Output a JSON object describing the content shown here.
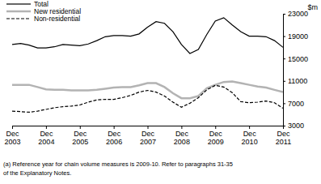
{
  "chart_data": {
    "type": "line",
    "y_label": "$m",
    "categories": [
      "Dec 2003",
      null,
      null,
      null,
      "Dec 2004",
      null,
      null,
      null,
      "Dec 2005",
      null,
      null,
      null,
      "Dec 2006",
      null,
      null,
      null,
      "Dec 2007",
      null,
      null,
      null,
      "Dec 2008",
      null,
      null,
      null,
      "Dec 2009",
      null,
      null,
      null,
      "Dec 2010",
      null,
      null,
      null,
      "Dec 2011"
    ],
    "series": [
      {
        "name": "Total",
        "color": "#000000",
        "line_style": "solid",
        "values": [
          17500,
          17700,
          17400,
          16900,
          16900,
          17100,
          17500,
          17400,
          17300,
          17600,
          18200,
          18900,
          19100,
          19100,
          19000,
          19400,
          20600,
          21600,
          21300,
          19800,
          17500,
          15900,
          16600,
          19300,
          21700,
          22300,
          21000,
          19800,
          19000,
          19000,
          18900,
          18200,
          17000
        ]
      },
      {
        "name": "New residential",
        "color": "#b3b3b3",
        "line_style": "solid",
        "values": [
          10300,
          10300,
          10300,
          9900,
          9500,
          9400,
          9400,
          9300,
          9300,
          9300,
          9400,
          9600,
          9800,
          9900,
          9900,
          10200,
          10600,
          10600,
          9900,
          8800,
          7900,
          7900,
          8300,
          9700,
          10300,
          10800,
          10900,
          10600,
          10300,
          10000,
          9800,
          9400,
          9000
        ]
      },
      {
        "name": "Non-residential",
        "color": "#000000",
        "line_style": "dashed",
        "values": [
          5600,
          5500,
          5400,
          5600,
          5900,
          6200,
          6400,
          6500,
          6700,
          7200,
          7600,
          7700,
          7700,
          8000,
          8400,
          9000,
          9300,
          9000,
          8300,
          7200,
          6300,
          7000,
          8000,
          9400,
          10200,
          9900,
          8900,
          7300,
          7100,
          7200,
          7400,
          7100,
          6100
        ]
      }
    ],
    "ylim": [
      3000,
      23000
    ],
    "yticks": [
      3000,
      7000,
      11000,
      15000,
      19000,
      23000
    ],
    "legend": "top-left",
    "grid": false,
    "annotations": [
      "(a) Reference year for chain volume measures is 2009-10. Refer to paragraphs 31-35",
      "of the Explanatory Notes."
    ]
  }
}
